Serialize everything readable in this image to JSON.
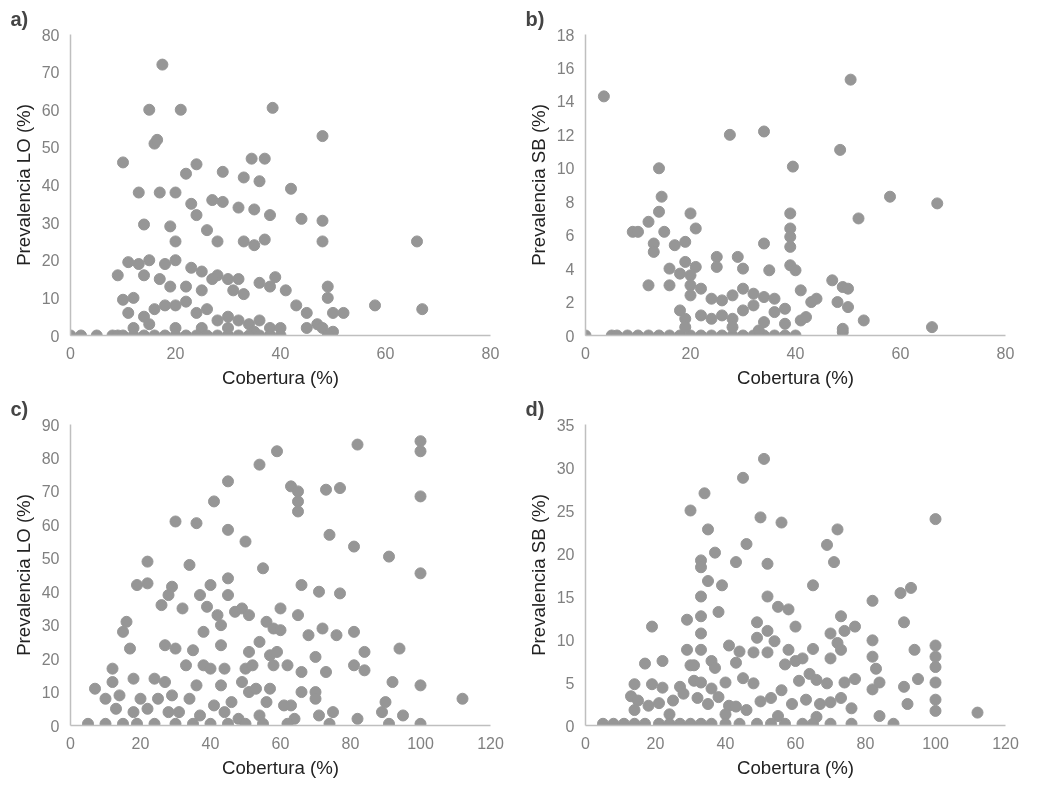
{
  "chart_data": [
    {
      "type": "scatter",
      "title": "a)",
      "xlabel": "Cobertura (%)",
      "ylabel": "Prevalencia LO (%)",
      "xlim": [
        0,
        80
      ],
      "xticks": [
        0,
        20,
        40,
        60,
        80
      ],
      "ylim": [
        0,
        80
      ],
      "yticks": [
        0,
        10,
        20,
        30,
        40,
        50,
        60,
        70,
        80
      ],
      "grid": false,
      "marker": "circle",
      "series": [
        {
          "color": "#969696",
          "x": [
            17.5,
            15,
            21,
            38.5,
            48,
            16,
            16.5,
            10,
            24,
            34.5,
            37,
            29,
            22,
            33,
            36,
            42,
            13,
            20,
            17,
            27,
            29,
            23,
            32,
            35,
            38,
            24,
            44,
            48,
            14,
            19,
            26,
            20,
            28,
            33,
            37,
            35,
            48,
            39,
            66,
            9,
            12,
            10,
            14,
            11,
            13,
            15,
            18,
            20,
            23,
            25,
            30,
            32,
            28,
            17,
            19,
            22,
            25,
            27,
            31,
            33,
            36,
            38,
            41,
            43,
            45,
            49,
            49,
            52,
            58,
            67,
            50,
            47,
            48,
            11,
            14,
            16,
            18,
            20,
            22,
            24,
            26,
            28,
            30,
            32,
            34,
            36,
            38,
            40,
            12,
            15,
            20,
            25,
            30,
            35,
            45,
            50,
            0,
            2,
            5,
            8,
            9,
            10,
            12,
            14,
            16,
            18,
            20,
            22,
            24,
            26,
            28,
            30,
            32,
            34,
            36,
            38,
            40,
            49
          ],
          "values": [
            72,
            60,
            60,
            60.5,
            53,
            51,
            52,
            46,
            45.5,
            47,
            47,
            43.5,
            43,
            42,
            41,
            39,
            38,
            38,
            38,
            36,
            35.5,
            35,
            34,
            33.5,
            32,
            32,
            31,
            30.5,
            29.5,
            29,
            28,
            25,
            25,
            25,
            25.5,
            24,
            25,
            15.5,
            25,
            16,
            10,
            9.5,
            16,
            19.5,
            19,
            20,
            19,
            20,
            18,
            17,
            15,
            15,
            16,
            15,
            13,
            13,
            12,
            15,
            12,
            11,
            14,
            13,
            12,
            8,
            6,
            13,
            10,
            6,
            8,
            7,
            6,
            3,
            2,
            6,
            5,
            7,
            8,
            8,
            9,
            6,
            7,
            4,
            5,
            4,
            3,
            4,
            2,
            2,
            2,
            3,
            2,
            2,
            2,
            1,
            2,
            1,
            0,
            0,
            0,
            0,
            0,
            0,
            0,
            0,
            0,
            0,
            0,
            0,
            0,
            0,
            0,
            0,
            0,
            0,
            0,
            0,
            0,
            0
          ]
        }
      ]
    },
    {
      "type": "scatter",
      "title": "b)",
      "xlabel": "Cobertura (%)",
      "ylabel": "Prevalencia SB (%)",
      "xlim": [
        0,
        80
      ],
      "xticks": [
        0,
        20,
        40,
        60,
        80
      ],
      "ylim": [
        0,
        18
      ],
      "yticks": [
        0,
        2,
        4,
        6,
        8,
        10,
        12,
        14,
        16,
        18
      ],
      "grid": false,
      "marker": "circle",
      "series": [
        {
          "color": "#969696",
          "x": [
            3.5,
            50.5,
            27.5,
            34,
            48.5,
            14,
            39.5,
            58,
            67,
            52,
            14.5,
            14,
            12,
            9,
            10,
            15,
            20,
            21,
            19,
            13,
            13,
            17,
            39,
            39,
            39,
            39,
            34,
            25,
            25,
            29,
            30,
            35,
            39,
            40,
            16,
            18,
            19,
            21,
            20,
            12,
            16,
            20,
            20,
            22,
            24,
            26,
            28,
            30,
            32,
            34,
            36,
            38,
            41,
            43,
            44,
            47,
            49,
            50,
            48,
            50,
            53,
            66,
            41,
            42,
            18,
            19,
            22,
            24,
            26,
            28,
            30,
            32,
            34,
            36,
            38,
            49,
            49,
            0,
            5,
            6,
            8,
            10,
            12,
            14,
            16,
            18,
            20,
            22,
            24,
            26,
            28,
            30,
            32,
            34,
            36,
            38,
            40,
            19,
            28,
            33
          ],
          "values": [
            14.3,
            15.3,
            12,
            12.2,
            11.1,
            10,
            10.1,
            8.3,
            7.9,
            7,
            8.3,
            7.4,
            6.8,
            6.2,
            6.2,
            6.2,
            7.3,
            6.4,
            5.6,
            5.5,
            5,
            5.4,
            7.3,
            6.4,
            5.9,
            5.3,
            5.5,
            4.7,
            4.1,
            4.7,
            4,
            3.9,
            4.2,
            3.9,
            4,
            3.7,
            4.4,
            4.1,
            3.6,
            3,
            3,
            3,
            2.4,
            2.8,
            2.2,
            2.1,
            2.4,
            2.8,
            2.5,
            2.3,
            2.2,
            1.6,
            2.7,
            2,
            2.2,
            3.3,
            2.9,
            2.8,
            2,
            1.7,
            0.9,
            0.5,
            0.9,
            1.1,
            1.5,
            1,
            1.2,
            1,
            1.2,
            1,
            1.5,
            1.8,
            0.8,
            1.4,
            0.7,
            0.2,
            0.4,
            0,
            0,
            0,
            0,
            0,
            0,
            0,
            0,
            0,
            0,
            0,
            0,
            0,
            0,
            0,
            0,
            0,
            0,
            0,
            0,
            0.5,
            0.5,
            0.3
          ]
        }
      ]
    },
    {
      "type": "scatter",
      "title": "c)",
      "xlabel": "Cobertura (%)",
      "ylabel": "Prevalencia LO (%)",
      "xlim": [
        0,
        120
      ],
      "xticks": [
        0,
        20,
        40,
        60,
        80,
        100,
        120
      ],
      "ylim": [
        0,
        90
      ],
      "yticks": [
        0,
        10,
        20,
        30,
        40,
        50,
        60,
        70,
        80,
        90
      ],
      "grid": false,
      "marker": "circle",
      "series": [
        {
          "color": "#969696",
          "x": [
            100,
            100,
            82,
            59,
            54,
            45,
            63,
            65,
            73,
            77,
            100,
            65,
            41,
            65,
            30,
            36,
            45,
            74,
            50,
            81,
            91,
            22,
            34,
            55,
            100,
            19,
            22,
            45,
            40,
            29,
            37,
            45,
            28,
            66,
            71,
            77,
            26,
            32,
            39,
            42,
            47,
            49,
            51,
            60,
            65,
            16,
            15,
            38,
            43,
            56,
            58,
            60,
            68,
            72,
            76,
            81,
            27,
            30,
            35,
            43,
            51,
            54,
            57,
            59,
            70,
            84,
            94,
            17,
            33,
            38,
            40,
            44,
            50,
            52,
            58,
            62,
            66,
            73,
            81,
            84,
            12,
            12,
            18,
            24,
            27,
            36,
            43,
            49,
            51,
            53,
            57,
            66,
            70,
            92,
            100,
            7,
            10,
            14,
            20,
            25,
            29,
            34,
            41,
            46,
            56,
            61,
            63,
            70,
            90,
            112,
            13,
            18,
            22,
            28,
            31,
            37,
            44,
            48,
            54,
            64,
            71,
            75,
            82,
            89,
            95,
            5,
            10,
            15,
            19,
            24,
            30,
            35,
            40,
            45,
            50,
            55,
            62,
            74,
            91,
            100
          ],
          "values": [
            85,
            82,
            84,
            82,
            78,
            73,
            71.5,
            70,
            70.5,
            71,
            68.5,
            67,
            67,
            64,
            61,
            60.5,
            58.5,
            57,
            55,
            53.5,
            50.5,
            49,
            48,
            47,
            45.5,
            42,
            42.5,
            44,
            42,
            41.5,
            39,
            39,
            39,
            42,
            40,
            39.5,
            36,
            35,
            35.5,
            33,
            34,
            35,
            33,
            35,
            33,
            31,
            28,
            28,
            30,
            31,
            29,
            28.5,
            27,
            29,
            27,
            28,
            24,
            23,
            22.5,
            24,
            22,
            25,
            21,
            22,
            20.5,
            22,
            23,
            23,
            18,
            18,
            17,
            17,
            17,
            18,
            18,
            18,
            16,
            16,
            18,
            16.5,
            17,
            13,
            14,
            14,
            13,
            12,
            12,
            13,
            10,
            11,
            11,
            10,
            10,
            13,
            12,
            11,
            8,
            9,
            8,
            8,
            9,
            8,
            6,
            7,
            7,
            6,
            6,
            8,
            7,
            8,
            5,
            4,
            5,
            4,
            4,
            3,
            4,
            2,
            3,
            2,
            3,
            4,
            2,
            4,
            3,
            0.5,
            0.5,
            0.5,
            0.5,
            0.5,
            0.5,
            0.5,
            0.5,
            0.5,
            0.5,
            0.5,
            0.5,
            0.5,
            0.5,
            0.5
          ]
        }
      ]
    },
    {
      "type": "scatter",
      "title": "d)",
      "xlabel": "Cobertura (%)",
      "ylabel": "Prevalencia SB (%)",
      "xlim": [
        0,
        120
      ],
      "xticks": [
        0,
        20,
        40,
        60,
        80,
        100,
        120
      ],
      "ylim": [
        0,
        35
      ],
      "yticks": [
        0,
        5,
        10,
        15,
        20,
        25,
        30,
        35
      ],
      "grid": false,
      "marker": "circle",
      "series": [
        {
          "color": "#969696",
          "x": [
            51,
            45,
            34,
            30,
            50,
            56,
            100,
            35,
            72,
            46,
            69,
            37,
            33,
            33,
            43,
            52,
            71,
            35,
            39,
            65,
            93,
            33,
            52,
            90,
            82,
            55,
            58,
            38,
            29,
            73,
            49,
            91,
            19,
            33,
            33,
            52,
            60,
            70,
            74,
            77,
            49,
            54,
            29,
            33,
            41,
            44,
            48,
            52,
            58,
            65,
            72,
            73,
            82,
            94,
            100,
            100,
            100,
            82,
            83,
            36,
            37,
            30,
            31,
            43,
            57,
            60,
            62,
            70,
            17,
            22,
            14,
            19,
            22,
            27,
            31,
            33,
            36,
            40,
            45,
            48,
            61,
            64,
            66,
            69,
            74,
            77,
            82,
            84,
            91,
            95,
            100,
            13,
            15,
            18,
            21,
            25,
            28,
            32,
            35,
            38,
            41,
            43,
            46,
            50,
            53,
            56,
            59,
            63,
            67,
            70,
            73,
            76,
            92,
            100,
            100,
            112,
            14,
            24,
            40,
            55,
            66,
            84,
            5,
            8,
            11,
            14,
            17,
            21,
            24,
            27,
            30,
            33,
            36,
            40,
            44,
            49,
            53,
            57,
            62,
            65,
            70,
            76,
            88
          ],
          "values": [
            31,
            28.8,
            27,
            25,
            24.2,
            23.6,
            24,
            22.8,
            22.8,
            21.1,
            21,
            20.1,
            19.2,
            18.4,
            19,
            18.8,
            19,
            16.8,
            16.3,
            16.3,
            16,
            15,
            15,
            15.4,
            14.5,
            13.8,
            13.5,
            13.2,
            12.3,
            12.7,
            12,
            12,
            11.5,
            12.7,
            10.7,
            11,
            11.5,
            10.7,
            11,
            11.5,
            10.2,
            9.8,
            8.8,
            8.8,
            9.3,
            8.6,
            8.5,
            8.5,
            8.8,
            8.9,
            9.6,
            8.8,
            9.9,
            8.8,
            9.3,
            8,
            6.8,
            8,
            6.6,
            7.5,
            6.7,
            7,
            7,
            7.3,
            7.1,
            7.5,
            7.8,
            7.8,
            7.2,
            7.5,
            4.8,
            4.8,
            4.4,
            4.5,
            5.2,
            5,
            4.3,
            5,
            5.5,
            4.9,
            5.2,
            6,
            5.3,
            4.9,
            5,
            5.4,
            4.2,
            5,
            4.5,
            5.4,
            5,
            3.4,
            2.9,
            2.3,
            2.6,
            2.9,
            3.7,
            3.2,
            2.5,
            3.3,
            2.3,
            2.2,
            1.8,
            2.8,
            3.2,
            4.1,
            2.5,
            3,
            2.5,
            2.7,
            3.2,
            2,
            2.5,
            3,
            1.7,
            1.5,
            1.8,
            1.3,
            1.3,
            1.1,
            1,
            1.1,
            0.2,
            0.2,
            0.2,
            0.2,
            0.2,
            0.2,
            0.2,
            0.2,
            0.2,
            0.2,
            0.2,
            0.2,
            0.2,
            0.2,
            0.2,
            0.2,
            0.2,
            0.2,
            0.2,
            0.2,
            0.2
          ]
        }
      ]
    }
  ]
}
